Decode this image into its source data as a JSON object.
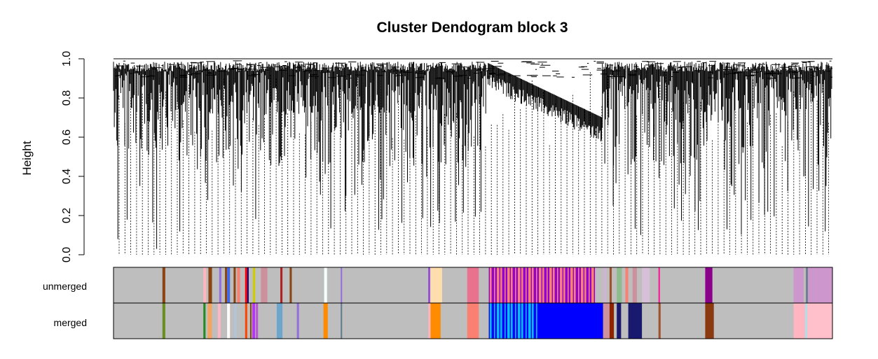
{
  "chart_data": {
    "type": "dendrogram",
    "title": "Cluster Dendogram block 3",
    "ylabel": "Height",
    "xlabel": "",
    "ylim": [
      0,
      1
    ],
    "yticks": [
      "0.0",
      "0.2",
      "0.4",
      "0.6",
      "0.8",
      "1.0"
    ],
    "grid": false,
    "color_rows": [
      {
        "label": "unmerged",
        "base_color": "#bebebe",
        "bands": [
          {
            "from": 0.068,
            "to": 0.072,
            "color": "#8b4513"
          },
          {
            "from": 0.125,
            "to": 0.129,
            "color": "#ffb6c1"
          },
          {
            "from": 0.132,
            "to": 0.137,
            "color": "#8b4513"
          },
          {
            "from": 0.147,
            "to": 0.15,
            "color": "#9370db"
          },
          {
            "from": 0.155,
            "to": 0.158,
            "color": "#8b4513"
          },
          {
            "from": 0.158,
            "to": 0.162,
            "color": "#4169e1"
          },
          {
            "from": 0.167,
            "to": 0.17,
            "color": "#8b4513"
          },
          {
            "from": 0.172,
            "to": 0.176,
            "color": "#fa8072"
          },
          {
            "from": 0.183,
            "to": 0.186,
            "color": "#ff0000"
          },
          {
            "from": 0.186,
            "to": 0.188,
            "color": "#00008b"
          },
          {
            "from": 0.194,
            "to": 0.197,
            "color": "#cdcd00"
          },
          {
            "from": 0.205,
            "to": 0.214,
            "color": "#cd919e"
          },
          {
            "from": 0.232,
            "to": 0.235,
            "color": "#b22222"
          },
          {
            "from": 0.245,
            "to": 0.248,
            "color": "#8b4513"
          },
          {
            "from": 0.293,
            "to": 0.297,
            "color": "#f5fffa"
          },
          {
            "from": 0.316,
            "to": 0.318,
            "color": "#9370db"
          },
          {
            "from": 0.438,
            "to": 0.44,
            "color": "#8a2be2"
          },
          {
            "from": 0.441,
            "to": 0.457,
            "color": "#ffdead"
          },
          {
            "from": 0.492,
            "to": 0.508,
            "color": "#e9728f"
          },
          {
            "from": 0.522,
            "to": 0.67,
            "color": "#9400d3",
            "pattern": "stripes",
            "alt_color": "#fa8072"
          },
          {
            "from": 0.681,
            "to": 0.686,
            "color": "#cdb5cd"
          },
          {
            "from": 0.69,
            "to": 0.693,
            "color": "#a0522d"
          },
          {
            "from": 0.7,
            "to": 0.707,
            "color": "#8fbc8f"
          },
          {
            "from": 0.712,
            "to": 0.716,
            "color": "#fa8072"
          },
          {
            "from": 0.722,
            "to": 0.728,
            "color": "#cd919e"
          },
          {
            "from": 0.735,
            "to": 0.746,
            "color": "#d8bfd8"
          },
          {
            "from": 0.758,
            "to": 0.76,
            "color": "#ff1493"
          },
          {
            "from": 0.823,
            "to": 0.833,
            "color": "#8b008b"
          },
          {
            "from": 0.946,
            "to": 0.96,
            "color": "#cd96cd"
          },
          {
            "from": 0.963,
            "to": 0.966,
            "color": "#708090"
          },
          {
            "from": 0.966,
            "to": 1.0,
            "color": "#cd96cd"
          }
        ]
      },
      {
        "label": "merged",
        "base_color": "#bebebe",
        "bands": [
          {
            "from": 0.068,
            "to": 0.072,
            "color": "#6b8e23"
          },
          {
            "from": 0.125,
            "to": 0.128,
            "color": "#228b22"
          },
          {
            "from": 0.131,
            "to": 0.137,
            "color": "#f4a460"
          },
          {
            "from": 0.145,
            "to": 0.149,
            "color": "#ffb6c1"
          },
          {
            "from": 0.158,
            "to": 0.162,
            "color": "#fffafa"
          },
          {
            "from": 0.168,
            "to": 0.171,
            "color": "#b0c4de"
          },
          {
            "from": 0.183,
            "to": 0.186,
            "color": "#ff4500"
          },
          {
            "from": 0.19,
            "to": 0.192,
            "color": "#8b4513"
          },
          {
            "from": 0.193,
            "to": 0.197,
            "color": "#b23aee"
          },
          {
            "from": 0.198,
            "to": 0.201,
            "color": "#ba55d3"
          },
          {
            "from": 0.227,
            "to": 0.235,
            "color": "#6ca6cd"
          },
          {
            "from": 0.255,
            "to": 0.258,
            "color": "#9370db"
          },
          {
            "from": 0.292,
            "to": 0.298,
            "color": "#ff8c00"
          },
          {
            "from": 0.316,
            "to": 0.318,
            "color": "#607b8b"
          },
          {
            "from": 0.438,
            "to": 0.441,
            "color": "#ffb6c1"
          },
          {
            "from": 0.441,
            "to": 0.455,
            "color": "#ff8c00"
          },
          {
            "from": 0.492,
            "to": 0.508,
            "color": "#fa8072"
          },
          {
            "from": 0.522,
            "to": 0.59,
            "color": "#0000ff",
            "pattern": "stripes",
            "alt_color": "#00bfff"
          },
          {
            "from": 0.59,
            "to": 0.681,
            "color": "#0000ff"
          },
          {
            "from": 0.681,
            "to": 0.69,
            "color": "#cd919e"
          },
          {
            "from": 0.69,
            "to": 0.696,
            "color": "#8b2500"
          },
          {
            "from": 0.7,
            "to": 0.706,
            "color": "#191970"
          },
          {
            "from": 0.716,
            "to": 0.735,
            "color": "#191970"
          },
          {
            "from": 0.758,
            "to": 0.761,
            "color": "#a0522d"
          },
          {
            "from": 0.823,
            "to": 0.835,
            "color": "#8b3a0f"
          },
          {
            "from": 0.946,
            "to": 0.962,
            "color": "#ffb6c1"
          },
          {
            "from": 0.962,
            "to": 0.965,
            "color": "#b0e0e6"
          },
          {
            "from": 0.965,
            "to": 1.0,
            "color": "#ffc0cb"
          }
        ]
      }
    ],
    "colors": {
      "branches": "#000000",
      "dashed_lines": "#000000",
      "base_row": "#bebebe"
    }
  }
}
